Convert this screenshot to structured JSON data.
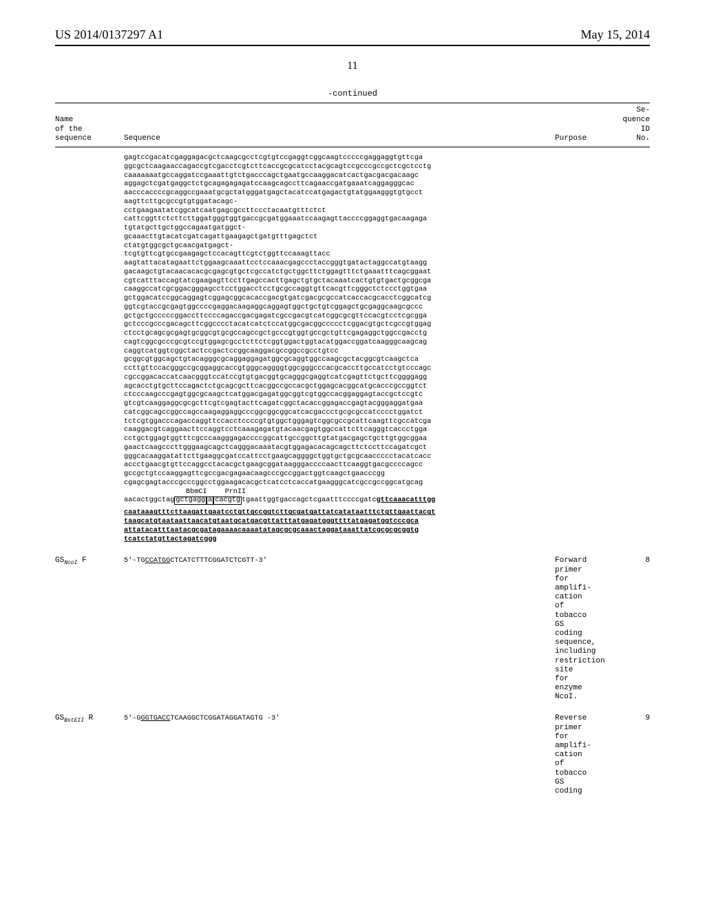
{
  "header": {
    "left": "US 2014/0137297 A1",
    "right": "May 15, 2014"
  },
  "page_number": "11",
  "continued": "-continued",
  "tableHead": {
    "name": "Name\nof the\nsequence",
    "seq": "Sequence",
    "purpose": "Purpose",
    "id": "Se-\nquence\nID\nNo."
  },
  "mainSeq": [
    "gagtccgacatcgaggagacgctcaagcgcctcgtgtccgaggtcggcaagtcccccgaggaggtgttcga",
    "ggcgctcaagaaccagaccgtcgacctcgtcttcaccgcgcatcctacgcagtccgcccgccgctcgctcctg",
    "caaaaaaatgccaggatccgaaattgtctgacccagctgaatgccaaggacatcactgacgacgacaagc",
    "aggagctcgatgaggctctgcagagagagatccaagcagccttcagaaccgatgaaatcaggagggcac",
    "aacccaccccgcaggccgaaatgcgctatgggatgagctacatccatgagactgtatggaagggtgtgcct",
    "aagttcttgcgccgtgtggatacagc-",
    "cctgaagaatatcggcatcaatgagcgccttccctacaatgtttctct",
    "cattcggttctcttcttggatgggtggtgaccgcgatggaaatccaagagttaccccggaggtgacaagaga",
    "tgtatgcttgctggccagaatgatggct-",
    "gcaaacttgtacatcgatcagattgaagagctgatgtttgagctct",
    "ctatgtggcgctgcaacgatgagct-",
    "tcgtgttcgtgccgaagagctccacagttcgtctggttccaaagttacc",
    "aagtattacatagaattctggaagcaaattcctccaaacgagccctaccgggtgatactaggccatgtaagg",
    "gacaagctgtacaacacacgcgagcgtgctcgccatctgctggcttctggagtttctgaaatttcagcggaat",
    "cgtcatttaccagtatcgaagagttccttgagccacttgagctgtgctacaaatcactgtgtgactgcggcga",
    "caaggccatcgcggacgggagcctcctggacctcctgcgccaggtgttcacgttcgggctctccctggtgaa",
    "gctggacatccggcaggagtcggagcggcacaccgacgtgatcgacgcgccatcaccacgcacctcggcatcg",
    "ggtcgtaccgcgagtggccccgaggacaagaggcaggagtggctgctgtcggagctgcgaggcaagcgccc",
    "gctgctgcccccggaccttccccagaccgacgagatcgccgacgtcatcggcgcgttccacgtcctcgcgga",
    "gctcccgcccgacagcttcggcccctacatcatctccatggcgacggccccctcggacgtgctcgccgtggag",
    "ctcctgcagcgcgagtgcggcgtgcgccagccgctgcccgtggtgccgctgttcgagaggctggccgacctg",
    "cagtcggcgcccgcgtccgtggagcgcctcttctcggtggactggtacatggaccggatcaagggcaagcag",
    "caggtcatggtcggctactccgactccggcaaggacgccggccgcctgtcc",
    "gcggcgtggcagctgtacagggcgcaggaggagatggcgcaggtggccaagcgctacggcgtcaagctca",
    "ccttgttccacgggccgcggaggcaccgtgggcaggggtggcgggcccacgcaccttgccatcctgtcccagc",
    "cgccggacaccatcaacgggtccatccgtgtgacggtgcagggcgaggtcatcgagttctgcttcggggagg",
    "agcacctgtgcttccagactctgcagcgcttcacggccgccacgctggagcacggcatgcacccgccggtct",
    "ctcccaagcccgagtggcgcaagctcatggacgagatggcggtcgtggccacggaggagtaccgctccgtc",
    "gtcgtcaaggaggcgcgcttcgtcgagtacttcagatcggctacaccggagaccgagtacgggaggatgaa",
    "catcggcagccggccagccaagaggaggcccggcggcggcatcacgaccctgcgcgccatcccctggatct",
    "tctcgtggacccagaccaggttccacctccccgtgtggctgggagtcggcgccgcattcaagttcgccatcga",
    "caaggacgtcaggaacttccaggtcctcaaagagatgtacaacgagtggccattcttcagggtcaccctgga",
    "cctgctggagtggtttcgcccaagggagaccccggcattgccggcttgtatgacgagctgcttgtggcggaa",
    "gaactcaagcccttgggaagcagctcagggacaaatacgtggagacacagcagcttctccttccagatcgct",
    "gggcacaaggatattcttgaaggcgatccattcctgaagcaggggctggtgctgcgcaaccccctacatcacc",
    "accctgaacgtgttccaggcctacacgctgaagcggataagggaccccaacttcaaggtgacgccccagcc",
    "gccgctgtccaaggagttcgccgacgagaacaagcccgccggactggtcaagctgaacccgg",
    "cgagcgagtacccgcccggcctggaagacacgctcatcctcaccatgaagggcatcgccgccggcatgcag"
  ],
  "restr_labels": {
    "left": "BbmCI",
    "right": "PrnII"
  },
  "restr_line_prefix": "aacactggctag",
  "restr_box1": "gctgagg",
  "restr_box2": "a",
  "restr_box3": "cacgtg",
  "restr_line_mid": "tgaattggtgaccagctcgaatttccccgatc",
  "restr_line_ul": "gttcaaacatttgg",
  "ul_lines": [
    "caataaagtttcttaagattgaatcctgttgccggtcttgcgatgattatcatataatttctgttgaattacgt",
    "taagcatgtaataattaacatgtaatgcatgacgttatttatgagatgggttttatgagatggtcccgca",
    "attatacatttaatacgcgatagaaaacaaaatatagcgcgcaaactaggataaattatcgcgcgcggtg",
    "tcatctatgttactagatcggg"
  ],
  "rows": [
    {
      "name_html": "GS<span class=\"sub\">NcoI</span> F",
      "sequence": "5'-TGCCATGGCTCATCTTTCGGATCTCGTT-3'",
      "ul_start": 5,
      "ul_end": 11,
      "purpose": "Forward\nprimer\nfor\namplifi-\ncation\nof\ntobacco\nGS\ncoding\nsequence,\nincluding\nrestriction\nsite\nfor\nenzyme\nNcoI.",
      "id": "8"
    },
    {
      "name_html": "GS<span class=\"sub\">BstEII</span> R",
      "sequence": "5'-GGGTGACCTCAAGGCTCGGATAGGATAGTG -3'",
      "ul_start": 4,
      "ul_end": 11,
      "purpose": "Reverse\nprimer\nfor\namplifi-\ncation\nof\ntobacco\nGS\ncoding",
      "id": "9"
    }
  ]
}
